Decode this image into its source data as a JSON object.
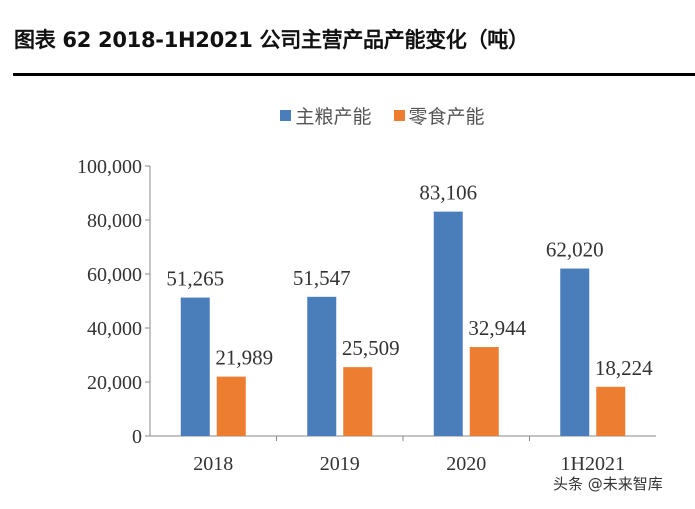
{
  "title": "图表 62 2018-1H2021 公司主营产品产能变化（吨）",
  "watermark": "头条 @未来智库",
  "chart_data": {
    "type": "bar",
    "title": "",
    "categories": [
      "2018",
      "2019",
      "2020",
      "1H2021"
    ],
    "series": [
      {
        "name": "主粮产能",
        "values": [
          51265,
          51547,
          83106,
          62020
        ],
        "color": "#4a7ebb",
        "labels": [
          "51,265",
          "51,547",
          "83,106",
          "62,020"
        ]
      },
      {
        "name": "零食产能",
        "values": [
          21989,
          25509,
          32944,
          18224
        ],
        "color": "#ed7d31",
        "labels": [
          "21,989",
          "25,509",
          "32,944",
          "18,224"
        ]
      }
    ],
    "ylim": [
      0,
      100000
    ],
    "yticks": [
      0,
      20000,
      40000,
      60000,
      80000,
      100000
    ],
    "ytick_labels": [
      "0",
      "20,000",
      "40,000",
      "60,000",
      "80,000",
      "100,000"
    ],
    "xlabel": "",
    "ylabel": "",
    "grid": false,
    "legend": "top"
  }
}
